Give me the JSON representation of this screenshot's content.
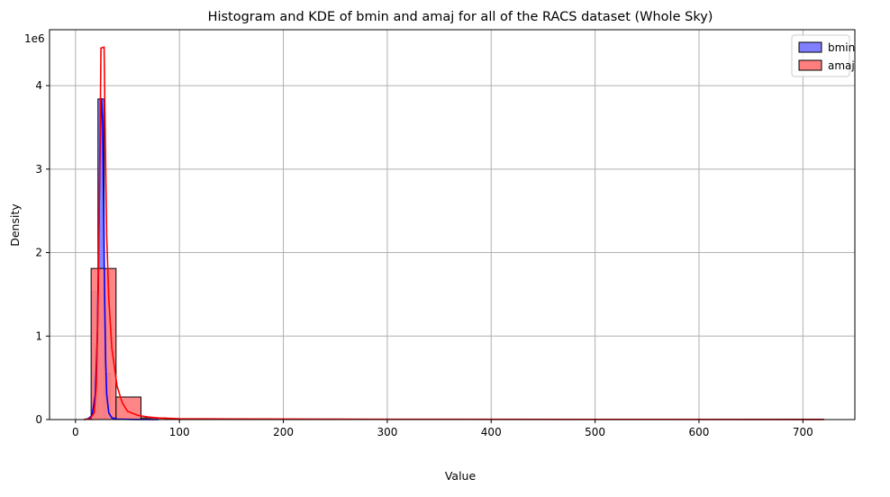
{
  "chart_data": {
    "type": "histogram",
    "title": "Histogram and KDE of bmin and amaj for all of the RACS dataset (Whole Sky)",
    "xlabel": "Value",
    "ylabel": "Density",
    "y_offset_text": "1e6",
    "xlim": [
      -25,
      750
    ],
    "ylim": [
      0,
      4.67
    ],
    "x_ticks": [
      0,
      100,
      200,
      300,
      400,
      500,
      600,
      700
    ],
    "y_ticks": [
      0,
      1,
      2,
      3,
      4
    ],
    "grid": true,
    "legend_position": "top-right",
    "series": [
      {
        "name": "bmin",
        "color": "#0000ff",
        "fill": "#7f7fff",
        "bins": [
          {
            "x0": 15.6,
            "x1": 21.6,
            "height": 1.53
          },
          {
            "x0": 21.6,
            "x1": 27.6,
            "height": 3.84
          },
          {
            "x0": 27.6,
            "x1": 33.6,
            "height": 0.55
          },
          {
            "x0": 33.6,
            "x1": 39.6,
            "height": 0.03
          },
          {
            "x0": 39.6,
            "x1": 45.6,
            "height": 0.01
          },
          {
            "x0": 63.0,
            "x1": 87.0,
            "height": 0.01
          }
        ],
        "kde": [
          [
            8,
            0
          ],
          [
            12,
            0.01
          ],
          [
            16,
            0.05
          ],
          [
            19,
            0.3
          ],
          [
            21,
            1.0
          ],
          [
            22.5,
            2.3
          ],
          [
            24,
            3.5
          ],
          [
            25,
            3.85
          ],
          [
            26,
            3.6
          ],
          [
            27,
            2.6
          ],
          [
            28,
            1.5
          ],
          [
            29,
            0.7
          ],
          [
            30,
            0.3
          ],
          [
            32,
            0.08
          ],
          [
            35,
            0.02
          ],
          [
            40,
            0.005
          ],
          [
            60,
            0.001
          ],
          [
            80,
            0
          ]
        ]
      },
      {
        "name": "amaj",
        "color": "#ff0000",
        "fill": "#ff7f7f",
        "bins": [
          {
            "x0": 15.0,
            "x1": 39.0,
            "height": 1.81
          },
          {
            "x0": 39.0,
            "x1": 63.0,
            "height": 0.27
          },
          {
            "x0": 63.0,
            "x1": 87.0,
            "height": 0.02
          },
          {
            "x0": 87.0,
            "x1": 720.0,
            "height": 0.005
          }
        ],
        "kde": [
          [
            8,
            0
          ],
          [
            14,
            0.01
          ],
          [
            18,
            0.08
          ],
          [
            20,
            0.4
          ],
          [
            22,
            1.6
          ],
          [
            23.5,
            3.3
          ],
          [
            24.5,
            4.45
          ],
          [
            27.5,
            4.46
          ],
          [
            28.5,
            3.5
          ],
          [
            30,
            2.2
          ],
          [
            32,
            1.45
          ],
          [
            35,
            0.85
          ],
          [
            40,
            0.4
          ],
          [
            45,
            0.2
          ],
          [
            50,
            0.1
          ],
          [
            60,
            0.05
          ],
          [
            70,
            0.03
          ],
          [
            80,
            0.02
          ],
          [
            100,
            0.01
          ],
          [
            150,
            0.007
          ],
          [
            300,
            0.004
          ],
          [
            500,
            0.002
          ],
          [
            720,
            0.001
          ]
        ]
      }
    ]
  }
}
